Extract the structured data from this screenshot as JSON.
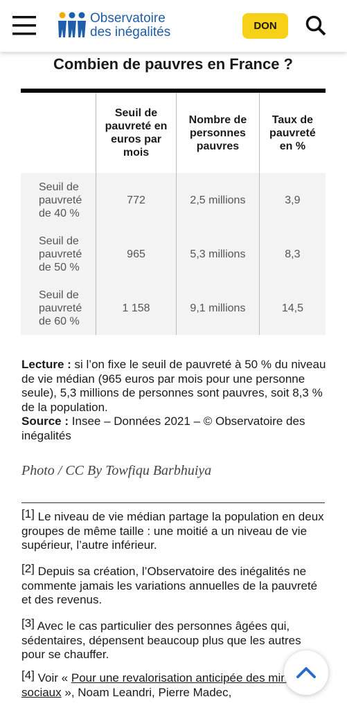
{
  "header": {
    "logo_line1": "Observatoire",
    "logo_line2": "des inégalités",
    "donate": "DON"
  },
  "table": {
    "title": "Combien de pauvres en France ?",
    "columns": [
      "Seuil de pauvreté en euros par mois",
      "Nombre de personnes pauvres",
      "Taux de pauvreté en %"
    ],
    "rows": [
      [
        "Seuil de pauvreté de 40 %",
        "772",
        "2,5 millions",
        "3,9"
      ],
      [
        "Seuil de pauvreté de 50 %",
        "965",
        "5,3 millions",
        "8,3"
      ],
      [
        "Seuil de pauvreté de 60 %",
        "1 158",
        "9,1 millions",
        "14,5"
      ]
    ]
  },
  "note": {
    "lecture_label": "Lecture :",
    "lecture_text": "si l’on fixe le seuil de pauvreté à 50 % du niveau de vie médian (965 euros par mois pour une personne seule), 5,3 millions de personnes sont pauvres, soit 8,3 % de la population.",
    "source_label": "Source :",
    "source_text": "Insee – Données 2021 – © Observatoire des inégalités"
  },
  "photo_credit": "Photo / CC By Towfiqu Barbhuiya",
  "footnotes": [
    {
      "marker": "[1]",
      "text": "Le niveau de vie médian partage la population en deux groupes de même taille : une moitié a un niveau de vie supérieur, l’autre inférieur."
    },
    {
      "marker": "[2]",
      "text": "Depuis sa création, l’Observatoire des inégalités ne commente jamais les variations annuelles de la pauvreté et des revenus."
    },
    {
      "marker": "[3]",
      "text": "Avec le cas particulier des personnes âgées qui, sédentaires, dépensent beaucoup plus que les autres pour se chauffer."
    },
    {
      "marker": "[4]",
      "prefix": "Voir «",
      "link": "Pour une revalorisation anticipée des minima sociaux",
      "text": "», Noam Leandri, Pierre Madec,"
    }
  ]
}
